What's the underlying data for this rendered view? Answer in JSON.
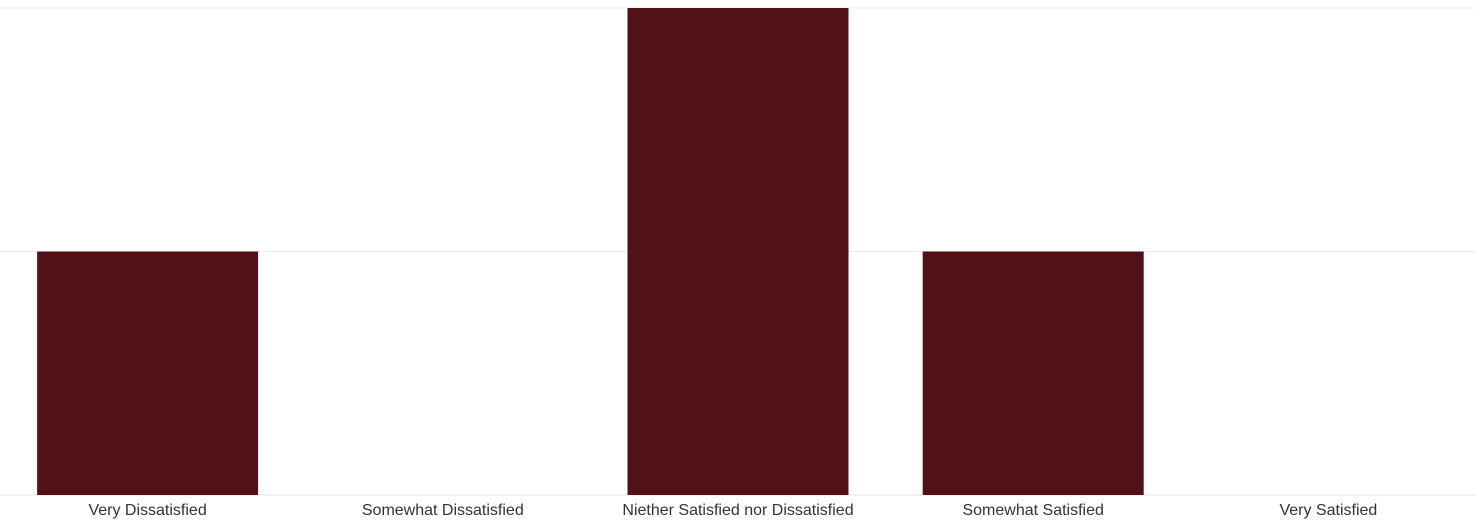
{
  "chart_data": {
    "type": "bar",
    "categories": [
      "Very Dissatisfied",
      "Somewhat Dissatisfied",
      "Niether Satisfied nor Dissatisfied",
      "Somewhat Satisfied",
      "Very Satisfied"
    ],
    "values": [
      1,
      0,
      2,
      1,
      0
    ],
    "ylim": [
      0,
      2
    ],
    "gridlines": [
      0,
      1,
      2
    ],
    "grid": true,
    "legend": "none",
    "title": "",
    "xlabel": "",
    "ylabel": "",
    "colors": {
      "bar": "#511217",
      "grid": "#ececec",
      "label": "#333333"
    }
  }
}
